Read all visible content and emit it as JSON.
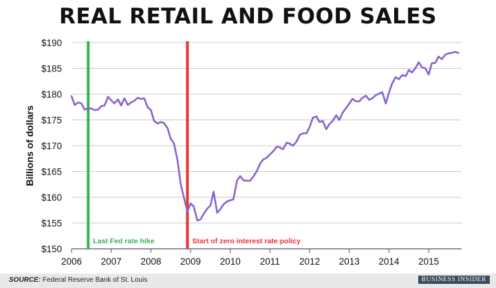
{
  "chart_data": {
    "type": "line",
    "title": "REAL RETAIL AND FOOD SALES",
    "ylabel": "Billions of dollars",
    "xlabel": "",
    "xlim": [
      2006,
      2015.83
    ],
    "ylim": [
      150,
      190
    ],
    "x_ticks": [
      2006,
      2007,
      2008,
      2009,
      2010,
      2011,
      2012,
      2013,
      2014,
      2015
    ],
    "x_tick_labels": [
      "2006",
      "2007",
      "2008",
      "2009",
      "2010",
      "2011",
      "2012",
      "2013",
      "2014",
      "2015"
    ],
    "y_ticks": [
      150,
      155,
      160,
      165,
      170,
      175,
      180,
      185,
      190
    ],
    "y_tick_labels": [
      "$150",
      "$155",
      "$160",
      "$165",
      "$170",
      "$175",
      "$180",
      "$185",
      "$190"
    ],
    "grid": "horizontal",
    "line_color": "#8a63cc",
    "series": [
      {
        "x": [
          2006.0,
          2006.08,
          2006.17,
          2006.25,
          2006.33,
          2006.42,
          2006.5,
          2006.58,
          2006.67,
          2006.75,
          2006.83,
          2006.92,
          2007.0,
          2007.08,
          2007.17,
          2007.25,
          2007.33,
          2007.42,
          2007.5,
          2007.58,
          2007.67,
          2007.75,
          2007.83,
          2007.92,
          2008.0,
          2008.08,
          2008.17,
          2008.25,
          2008.33,
          2008.42,
          2008.5,
          2008.58,
          2008.67,
          2008.75,
          2008.83,
          2008.92,
          2009.0,
          2009.08,
          2009.17,
          2009.25,
          2009.33,
          2009.42,
          2009.5,
          2009.58,
          2009.67,
          2009.75,
          2009.83,
          2009.92,
          2010.0,
          2010.08,
          2010.17,
          2010.25,
          2010.33,
          2010.42,
          2010.5,
          2010.58,
          2010.67,
          2010.75,
          2010.83,
          2010.92,
          2011.0,
          2011.08,
          2011.17,
          2011.25,
          2011.33,
          2011.42,
          2011.5,
          2011.58,
          2011.67,
          2011.75,
          2011.83,
          2011.92,
          2012.0,
          2012.08,
          2012.17,
          2012.25,
          2012.33,
          2012.42,
          2012.5,
          2012.58,
          2012.67,
          2012.75,
          2012.83,
          2012.92,
          2013.0,
          2013.08,
          2013.17,
          2013.25,
          2013.33,
          2013.42,
          2013.5,
          2013.58,
          2013.67,
          2013.75,
          2013.83,
          2013.92,
          2014.0,
          2014.08,
          2014.17,
          2014.25,
          2014.33,
          2014.42,
          2014.5,
          2014.58,
          2014.67,
          2014.75,
          2014.83,
          2014.92,
          2015.0,
          2015.08,
          2015.17,
          2015.25,
          2015.33,
          2015.42,
          2015.5,
          2015.58,
          2015.67,
          2015.75
        ],
        "y": [
          179.6,
          177.9,
          178.4,
          178.2,
          177.0,
          177.3,
          177.2,
          176.9,
          177.0,
          177.7,
          177.8,
          179.5,
          178.8,
          178.2,
          179.0,
          177.8,
          179.2,
          177.9,
          178.4,
          178.7,
          179.3,
          179.1,
          179.2,
          177.5,
          176.9,
          174.8,
          174.3,
          174.6,
          174.4,
          173.4,
          171.3,
          170.5,
          167.2,
          162.6,
          160.0,
          157.2,
          158.8,
          158.2,
          155.5,
          155.7,
          156.8,
          157.8,
          158.4,
          161.1,
          157.0,
          157.7,
          158.6,
          159.2,
          159.4,
          159.6,
          163.2,
          164.1,
          163.3,
          163.2,
          163.2,
          164.0,
          165.1,
          166.5,
          167.3,
          167.7,
          168.3,
          168.9,
          169.8,
          169.7,
          169.3,
          170.6,
          170.4,
          170.0,
          170.8,
          172.1,
          172.4,
          172.4,
          173.6,
          175.4,
          175.7,
          174.6,
          174.8,
          173.2,
          174.2,
          174.8,
          175.9,
          175.0,
          176.4,
          177.3,
          178.2,
          179.1,
          178.6,
          178.6,
          179.3,
          179.7,
          178.9,
          179.2,
          179.8,
          180.1,
          180.4,
          178.2,
          180.3,
          182.1,
          183.3,
          182.9,
          183.7,
          183.5,
          184.7,
          184.2,
          185.1,
          186.2,
          185.2,
          185.0,
          183.8,
          186.0,
          186.1,
          187.3,
          186.8,
          187.7,
          187.9,
          188.0,
          188.2,
          188.0
        ]
      }
    ],
    "annotations": [
      {
        "x": 2006.42,
        "label": "Last Fed rate hike",
        "color": "#3cb054"
      },
      {
        "x": 2008.92,
        "label": "Start of zero interest rate policy",
        "color": "#e63535"
      }
    ]
  },
  "footer": {
    "source_label": "SOURCE:",
    "source_text": "Federal Reserve Bank of St. Louis",
    "brand": "BUSINESS INSIDER"
  }
}
